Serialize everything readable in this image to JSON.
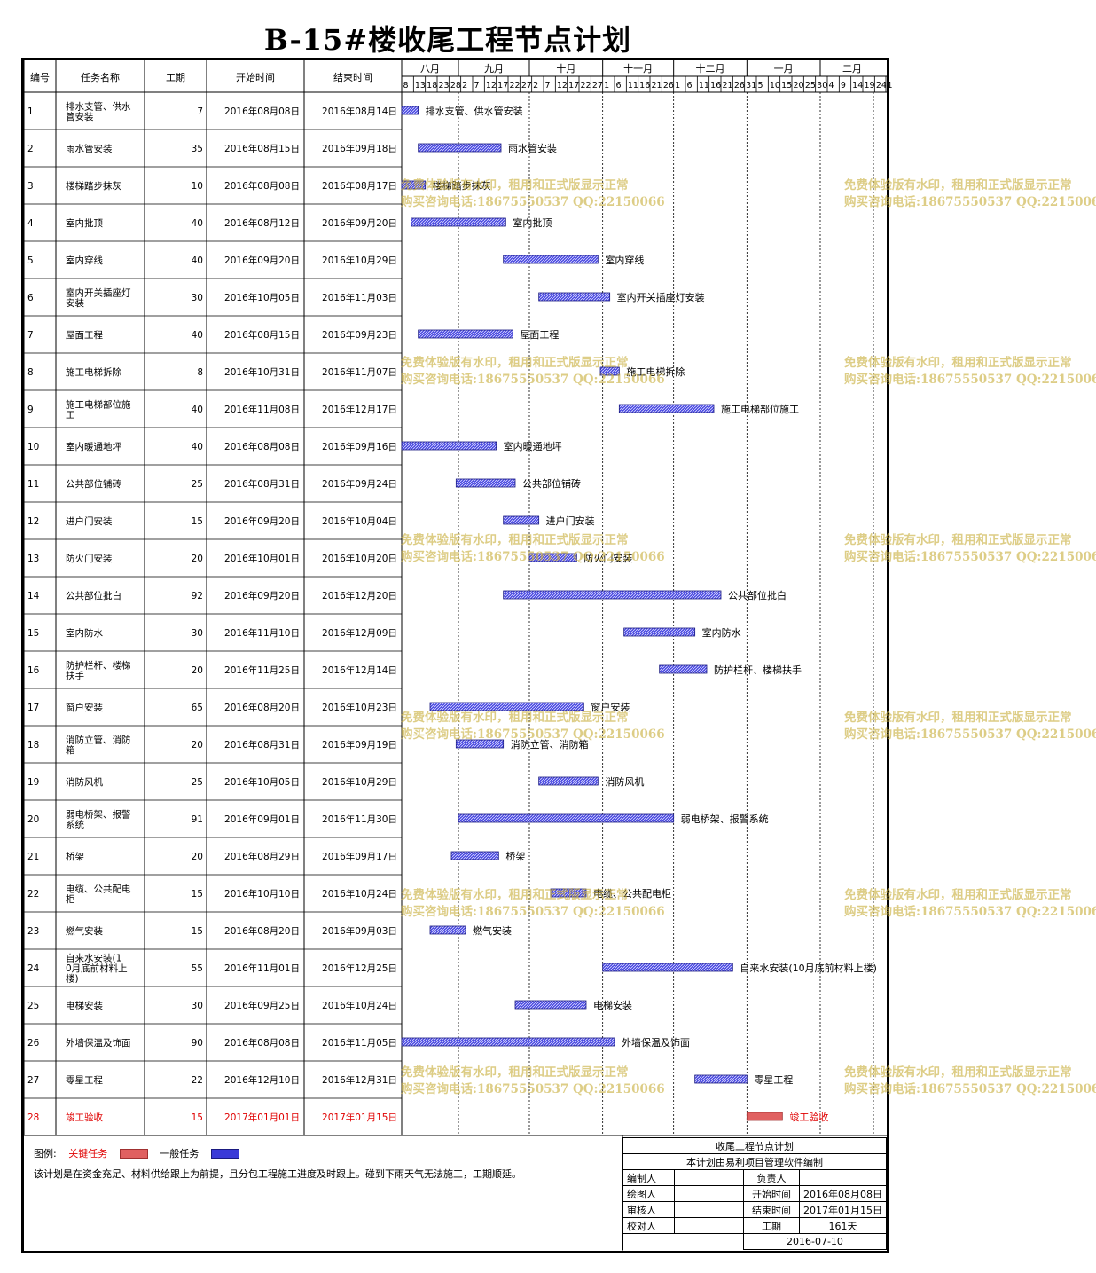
{
  "title": "B-15#楼收尾工程节点计划",
  "headers": {
    "id": "编号",
    "name": "任务名称",
    "dur": "工期",
    "start": "开始时间",
    "end": "结束时间"
  },
  "colors": {
    "critical": "#e06060",
    "normal": "#3a3ad8",
    "critical_text": "#e00000",
    "watermark": "#c8af3c"
  },
  "timescale": {
    "months": [
      "八月",
      "九月",
      "十月",
      "十一月",
      "十二月",
      "一月",
      "二月"
    ],
    "days": [
      "8",
      "13",
      "18",
      "23",
      "28",
      "2",
      "7",
      "12",
      "17",
      "22",
      "27",
      "2",
      "7",
      "12",
      "17",
      "22",
      "27",
      "1",
      "6",
      "11",
      "16",
      "21",
      "26",
      "1",
      "6",
      "11",
      "16",
      "21",
      "26",
      "31",
      "5",
      "10",
      "15",
      "20",
      "25",
      "30",
      "4",
      "9",
      "14",
      "19",
      "24",
      "1"
    ]
  },
  "chart_data": {
    "type": "gantt",
    "x_axis": "date",
    "range": [
      "2016-08-08",
      "2017-02-28"
    ],
    "tasks": [
      {
        "id": "1",
        "name": "排水支管、供水管安装",
        "dur": "7",
        "start": "2016年08月08日",
        "end": "2016年08月14日",
        "s": "2016-08-08",
        "e": "2016-08-14",
        "critical": false
      },
      {
        "id": "2",
        "name": "雨水管安装",
        "dur": "35",
        "start": "2016年08月15日",
        "end": "2016年09月18日",
        "s": "2016-08-15",
        "e": "2016-09-18",
        "critical": false
      },
      {
        "id": "3",
        "name": "楼梯踏步抹灰",
        "dur": "10",
        "start": "2016年08月08日",
        "end": "2016年08月17日",
        "s": "2016-08-08",
        "e": "2016-08-17",
        "critical": false
      },
      {
        "id": "4",
        "name": "室内批顶",
        "dur": "40",
        "start": "2016年08月12日",
        "end": "2016年09月20日",
        "s": "2016-08-12",
        "e": "2016-09-20",
        "critical": false
      },
      {
        "id": "5",
        "name": "室内穿线",
        "dur": "40",
        "start": "2016年09月20日",
        "end": "2016年10月29日",
        "s": "2016-09-20",
        "e": "2016-10-29",
        "critical": false
      },
      {
        "id": "6",
        "name": "室内开关插座灯安装",
        "dur": "30",
        "start": "2016年10月05日",
        "end": "2016年11月03日",
        "s": "2016-10-05",
        "e": "2016-11-03",
        "critical": false
      },
      {
        "id": "7",
        "name": "屋面工程",
        "dur": "40",
        "start": "2016年08月15日",
        "end": "2016年09月23日",
        "s": "2016-08-15",
        "e": "2016-09-23",
        "critical": false
      },
      {
        "id": "8",
        "name": "施工电梯拆除",
        "dur": "8",
        "start": "2016年10月31日",
        "end": "2016年11月07日",
        "s": "2016-10-31",
        "e": "2016-11-07",
        "critical": false
      },
      {
        "id": "9",
        "name": "施工电梯部位施工",
        "dur": "40",
        "start": "2016年11月08日",
        "end": "2016年12月17日",
        "s": "2016-11-08",
        "e": "2016-12-17",
        "critical": false
      },
      {
        "id": "10",
        "name": "室内暖通地坪",
        "dur": "40",
        "start": "2016年08月08日",
        "end": "2016年09月16日",
        "s": "2016-08-08",
        "e": "2016-09-16",
        "critical": false
      },
      {
        "id": "11",
        "name": "公共部位铺砖",
        "dur": "25",
        "start": "2016年08月31日",
        "end": "2016年09月24日",
        "s": "2016-08-31",
        "e": "2016-09-24",
        "critical": false
      },
      {
        "id": "12",
        "name": "进户门安装",
        "dur": "15",
        "start": "2016年09月20日",
        "end": "2016年10月04日",
        "s": "2016-09-20",
        "e": "2016-10-04",
        "critical": false
      },
      {
        "id": "13",
        "name": "防火门安装",
        "dur": "20",
        "start": "2016年10月01日",
        "end": "2016年10月20日",
        "s": "2016-10-01",
        "e": "2016-10-20",
        "critical": false
      },
      {
        "id": "14",
        "name": "公共部位批白",
        "dur": "92",
        "start": "2016年09月20日",
        "end": "2016年12月20日",
        "s": "2016-09-20",
        "e": "2016-12-20",
        "critical": false
      },
      {
        "id": "15",
        "name": "室内防水",
        "dur": "30",
        "start": "2016年11月10日",
        "end": "2016年12月09日",
        "s": "2016-11-10",
        "e": "2016-12-09",
        "critical": false
      },
      {
        "id": "16",
        "name": "防护栏杆、楼梯扶手",
        "dur": "20",
        "start": "2016年11月25日",
        "end": "2016年12月14日",
        "s": "2016-11-25",
        "e": "2016-12-14",
        "critical": false
      },
      {
        "id": "17",
        "name": "窗户安装",
        "dur": "65",
        "start": "2016年08月20日",
        "end": "2016年10月23日",
        "s": "2016-08-20",
        "e": "2016-10-23",
        "critical": false
      },
      {
        "id": "18",
        "name": "消防立管、消防箱",
        "dur": "20",
        "start": "2016年08月31日",
        "end": "2016年09月19日",
        "s": "2016-08-31",
        "e": "2016-09-19",
        "critical": false
      },
      {
        "id": "19",
        "name": "消防风机",
        "dur": "25",
        "start": "2016年10月05日",
        "end": "2016年10月29日",
        "s": "2016-10-05",
        "e": "2016-10-29",
        "critical": false
      },
      {
        "id": "20",
        "name": "弱电桥架、报警系统",
        "dur": "91",
        "start": "2016年09月01日",
        "end": "2016年11月30日",
        "s": "2016-09-01",
        "e": "2016-11-30",
        "critical": false
      },
      {
        "id": "21",
        "name": "桥架",
        "dur": "20",
        "start": "2016年08月29日",
        "end": "2016年09月17日",
        "s": "2016-08-29",
        "e": "2016-09-17",
        "critical": false
      },
      {
        "id": "22",
        "name": "电缆、公共配电柜",
        "dur": "15",
        "start": "2016年10月10日",
        "end": "2016年10月24日",
        "s": "2016-10-10",
        "e": "2016-10-24",
        "critical": false
      },
      {
        "id": "23",
        "name": "燃气安装",
        "dur": "15",
        "start": "2016年08月20日",
        "end": "2016年09月03日",
        "s": "2016-08-20",
        "e": "2016-09-03",
        "critical": false
      },
      {
        "id": "24",
        "name": "自来水安装(10月底前材料上楼)",
        "dur": "55",
        "start": "2016年11月01日",
        "end": "2016年12月25日",
        "s": "2016-11-01",
        "e": "2016-12-25",
        "critical": false
      },
      {
        "id": "25",
        "name": "电梯安装",
        "dur": "30",
        "start": "2016年09月25日",
        "end": "2016年10月24日",
        "s": "2016-09-25",
        "e": "2016-10-24",
        "critical": false
      },
      {
        "id": "26",
        "name": "外墙保温及饰面",
        "dur": "90",
        "start": "2016年08月08日",
        "end": "2016年11月05日",
        "s": "2016-08-08",
        "e": "2016-11-05",
        "critical": false
      },
      {
        "id": "27",
        "name": "零星工程",
        "dur": "22",
        "start": "2016年12月10日",
        "end": "2016年12月31日",
        "s": "2016-12-10",
        "e": "2016-12-31",
        "critical": false
      },
      {
        "id": "28",
        "name": "竣工验收",
        "dur": "15",
        "start": "2017年01月01日",
        "end": "2017年01月15日",
        "s": "2017-01-01",
        "e": "2017-01-15",
        "critical": true
      }
    ]
  },
  "legend": {
    "label": "图例:",
    "critical": "关键任务",
    "normal": "一般任务"
  },
  "note": "该计划是在资金充足、材料供给跟上为前提，且分包工程施工进度及时跟上。碰到下雨天气无法施工，工期顺延。",
  "titleblock": {
    "title": "收尾工程节点计划",
    "subtitle": "本计划由易利项目管理软件编制",
    "rows": [
      [
        "编制人",
        "",
        "负责人",
        ""
      ],
      [
        "绘图人",
        "",
        "开始时间",
        "2016年08月08日"
      ],
      [
        "审核人",
        "",
        "结束时间",
        "2017年01月15日"
      ],
      [
        "校对人",
        "",
        "工期",
        "161天"
      ]
    ],
    "date": "2016-07-10"
  },
  "watermark": {
    "line1": "免费体验版有水印，租用和正式版显示正常",
    "line2": "购买咨询电话:18675550537 QQ:22150066"
  }
}
